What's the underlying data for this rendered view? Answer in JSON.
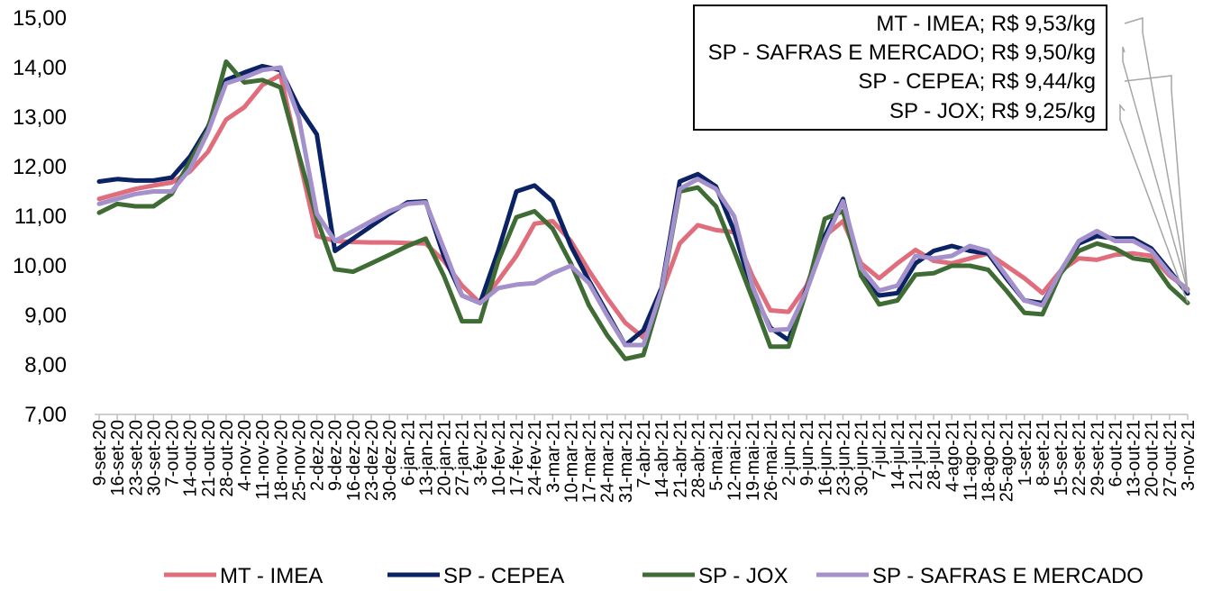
{
  "chart_data": {
    "type": "line",
    "title": "",
    "xlabel": "",
    "ylabel": "",
    "ylim": [
      7,
      15
    ],
    "yticks": [
      "7,00",
      "8,00",
      "9,00",
      "10,00",
      "11,00",
      "12,00",
      "13,00",
      "14,00",
      "15,00"
    ],
    "legend_position": "bottom",
    "categories": [
      "9-set-20",
      "16-set-20",
      "23-set-20",
      "30-set-20",
      "7-out-20",
      "14-out-20",
      "21-out-20",
      "28-out-20",
      "4-nov-20",
      "11-nov-20",
      "18-nov-20",
      "25-nov-20",
      "2-dez-20",
      "9-dez-20",
      "16-dez-20",
      "23-dez-20",
      "30-dez-20",
      "6-jan-21",
      "13-jan-21",
      "20-jan-21",
      "27-jan-21",
      "3-fev-21",
      "10-fev-21",
      "17-fev-21",
      "24-fev-21",
      "3-mar-21",
      "10-mar-21",
      "17-mar-21",
      "24-mar-21",
      "31-mar-21",
      "7-abr-21",
      "14-abr-21",
      "21-abr-21",
      "28-abr-21",
      "5-mai-21",
      "12-mai-21",
      "19-mai-21",
      "26-mai-21",
      "2-jun-21",
      "9-jun-21",
      "16-jun-21",
      "23-jun-21",
      "30-jun-21",
      "7-jul-21",
      "14-jul-21",
      "21-jul-21",
      "28-jul-21",
      "4-ago-21",
      "11-ago-21",
      "18-ago-21",
      "25-ago-21",
      "1-set-21",
      "8-set-21",
      "15-set-21",
      "22-set-21",
      "29-set-21",
      "6-out-21",
      "13-out-21",
      "20-out-21",
      "27-out-21",
      "3-nov-21"
    ],
    "series": [
      {
        "name": "MT - IMEA",
        "color": "#E06D7C",
        "values": [
          11.35,
          11.45,
          11.55,
          11.62,
          11.68,
          11.9,
          12.3,
          12.95,
          13.2,
          13.65,
          13.85,
          12.2,
          10.6,
          10.5,
          10.48,
          10.47,
          10.47,
          10.46,
          10.45,
          10.1,
          9.6,
          9.25,
          9.7,
          10.2,
          10.85,
          10.9,
          10.5,
          9.9,
          9.35,
          8.85,
          8.55,
          9.45,
          10.45,
          10.82,
          10.72,
          10.68,
          9.8,
          9.1,
          9.07,
          9.6,
          10.6,
          10.9,
          10.05,
          9.75,
          10.05,
          10.32,
          10.1,
          10.05,
          10.15,
          10.25,
          10.0,
          9.75,
          9.45,
          9.9,
          10.15,
          10.12,
          10.22,
          10.25,
          10.2,
          9.8,
          9.53
        ]
      },
      {
        "name": "SP - CEPEA",
        "color": "#0B2265",
        "values": [
          11.7,
          11.75,
          11.72,
          11.72,
          11.78,
          12.2,
          12.8,
          13.75,
          13.9,
          14.03,
          13.95,
          13.2,
          12.65,
          10.3,
          10.55,
          10.8,
          11.05,
          11.28,
          11.3,
          10.2,
          9.4,
          9.25,
          10.3,
          11.5,
          11.62,
          11.3,
          10.4,
          9.7,
          9.05,
          8.4,
          8.7,
          9.55,
          11.7,
          11.85,
          11.6,
          10.7,
          9.5,
          8.75,
          8.5,
          9.55,
          10.6,
          11.35,
          9.8,
          9.4,
          9.45,
          10.05,
          10.3,
          10.4,
          10.3,
          10.25,
          9.75,
          9.3,
          9.25,
          9.85,
          10.45,
          10.6,
          10.55,
          10.55,
          10.35,
          9.9,
          9.44
        ]
      },
      {
        "name": "SP - JOX",
        "color": "#3F6C34",
        "values": [
          11.07,
          11.25,
          11.2,
          11.2,
          11.45,
          12.1,
          12.75,
          14.12,
          13.7,
          13.75,
          13.6,
          12.25,
          10.95,
          9.93,
          9.88,
          10.05,
          10.22,
          10.4,
          10.55,
          9.8,
          8.88,
          8.88,
          10.1,
          10.98,
          11.1,
          10.75,
          10.05,
          9.2,
          8.6,
          8.12,
          8.2,
          9.45,
          11.5,
          11.58,
          11.2,
          10.3,
          9.35,
          8.37,
          8.37,
          9.5,
          10.95,
          11.1,
          9.8,
          9.22,
          9.3,
          9.82,
          9.85,
          10.0,
          10.0,
          9.92,
          9.5,
          9.05,
          9.02,
          9.85,
          10.3,
          10.45,
          10.35,
          10.15,
          10.1,
          9.58,
          9.25
        ]
      },
      {
        "name": "SP - SAFRAS E MERCADO",
        "color": "#A491CB",
        "values": [
          11.25,
          11.35,
          11.45,
          11.5,
          11.5,
          11.95,
          12.7,
          13.68,
          13.8,
          13.95,
          14.0,
          13.0,
          11.05,
          10.5,
          10.7,
          10.9,
          11.1,
          11.25,
          11.28,
          10.35,
          9.4,
          9.25,
          9.55,
          9.62,
          9.65,
          9.85,
          10.0,
          9.65,
          9.0,
          8.4,
          8.4,
          9.5,
          11.55,
          11.75,
          11.55,
          11.0,
          9.6,
          8.7,
          8.72,
          9.5,
          10.5,
          11.3,
          9.95,
          9.5,
          9.6,
          10.2,
          10.15,
          10.2,
          10.4,
          10.3,
          9.8,
          9.3,
          9.2,
          9.9,
          10.5,
          10.7,
          10.5,
          10.5,
          10.3,
          9.85,
          9.5
        ]
      }
    ],
    "annotations": [
      {
        "series": "MT - IMEA",
        "text": "MT - IMEA; R$ 9,53/kg"
      },
      {
        "series": "SP - SAFRAS E MERCADO",
        "text": "SP - SAFRAS E MERCADO; R$ 9,50/kg"
      },
      {
        "series": "SP - CEPEA",
        "text": "SP - CEPEA; R$ 9,44/kg"
      },
      {
        "series": "SP - JOX",
        "text": "SP - JOX; R$ 9,25/kg"
      }
    ]
  }
}
